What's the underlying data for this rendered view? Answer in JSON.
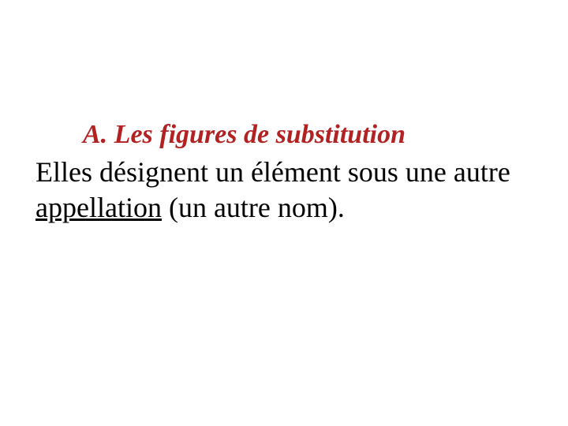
{
  "heading": {
    "text": "A.  Les figures de substitution",
    "color": "#b22222",
    "fontsize": 34,
    "weight": "bold",
    "style": "italic"
  },
  "body": {
    "pre_underline": "Elles désignent un élément sous une autre ",
    "underlined": "appellation",
    "post_underline": " (un autre nom).",
    "color": "#000000",
    "fontsize": 36,
    "weight": "normal"
  },
  "background_color": "#ffffff"
}
